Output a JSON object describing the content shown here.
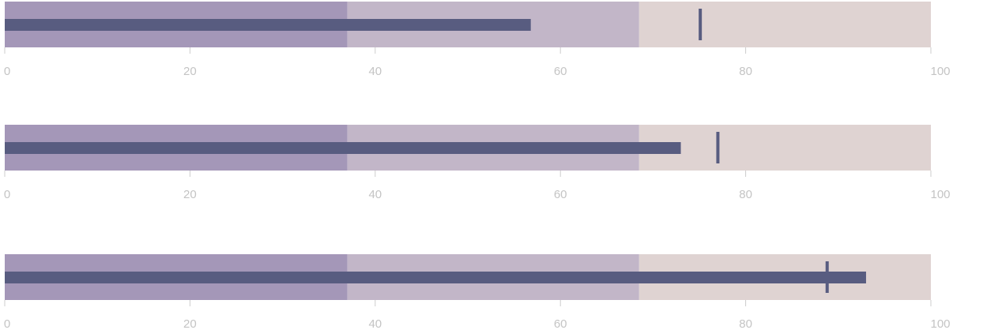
{
  "chart_data": {
    "type": "bullet",
    "axis": {
      "min": 0,
      "max": 100,
      "ticks": [
        0,
        20,
        40,
        60,
        80,
        100
      ],
      "tick_labels": [
        "0",
        "20",
        "40",
        "60",
        "80",
        "100"
      ]
    },
    "colors": {
      "range_low": "#a497b8",
      "range_mid": "#c2b6c8",
      "range_high": "#dfd3d2",
      "measure": "#585c80",
      "marker": "#585c80",
      "tick": "#cccccc",
      "tick_label": "#c4c4c4"
    },
    "bullets": [
      {
        "ranges": [
          37,
          68.5,
          100
        ],
        "measure": 56.8,
        "marker": 75.1
      },
      {
        "ranges": [
          37,
          68.5,
          100
        ],
        "measure": 73.0,
        "marker": 77.0
      },
      {
        "ranges": [
          37,
          68.5,
          100
        ],
        "measure": 93.0,
        "marker": 88.8
      }
    ]
  }
}
